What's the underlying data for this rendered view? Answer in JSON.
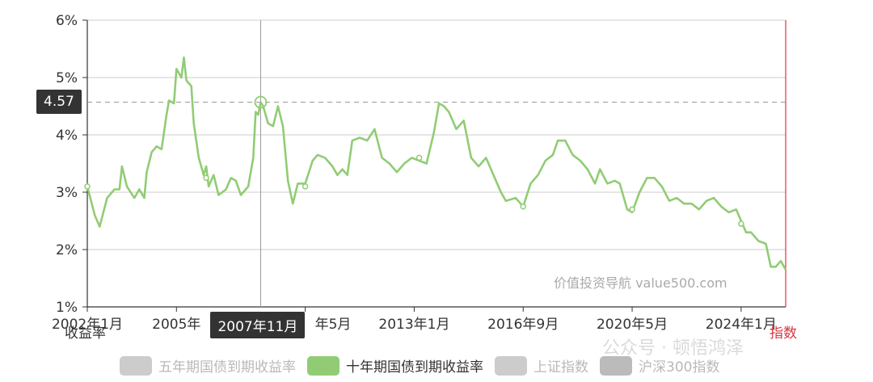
{
  "chart_data": {
    "type": "line",
    "x_tick_labels": [
      "2002年1月",
      "2005年",
      "年5月",
      "2013年1月",
      "2016年9月",
      "2020年5月",
      "2024年1月"
    ],
    "y_tick_labels": [
      "1%",
      "2%",
      "3%",
      "4%",
      "5%",
      "6%"
    ],
    "ylim": [
      1,
      6
    ],
    "xlim": [
      "2002-01",
      "2025-07"
    ],
    "ylabel_left": "收益率",
    "ylabel_right": "指数",
    "watermark": "价值投资导航 value500.com",
    "grid": true,
    "legend_position": "bottom",
    "legend": [
      {
        "label": "五年期国债到期收益率",
        "color": "#cccccc",
        "active": false
      },
      {
        "label": "十年期国债到期收益率",
        "color": "#91cc75",
        "active": true
      },
      {
        "label": "上证指数",
        "color": "#cccccc",
        "active": false
      },
      {
        "label": "沪深300指数",
        "color": "#bbbbbb",
        "active": false
      }
    ],
    "tooltip": {
      "x_label": "2007年11月",
      "y_label": "4.57",
      "x": "2007-11",
      "y": 4.57
    },
    "series": [
      {
        "name": "十年期国债到期收益率",
        "color": "#91cc75",
        "points": [
          [
            "2002-01",
            3.1
          ],
          [
            "2002-04",
            2.6
          ],
          [
            "2002-06",
            2.4
          ],
          [
            "2002-09",
            2.9
          ],
          [
            "2002-12",
            3.05
          ],
          [
            "2003-02",
            3.05
          ],
          [
            "2003-03",
            3.45
          ],
          [
            "2003-05",
            3.1
          ],
          [
            "2003-08",
            2.9
          ],
          [
            "2003-10",
            3.05
          ],
          [
            "2003-12",
            2.9
          ],
          [
            "2004-01",
            3.35
          ],
          [
            "2004-03",
            3.7
          ],
          [
            "2004-05",
            3.8
          ],
          [
            "2004-07",
            3.75
          ],
          [
            "2004-09",
            4.35
          ],
          [
            "2004-10",
            4.6
          ],
          [
            "2004-12",
            4.55
          ],
          [
            "2005-01",
            5.15
          ],
          [
            "2005-03",
            5.0
          ],
          [
            "2005-04",
            5.35
          ],
          [
            "2005-05",
            4.95
          ],
          [
            "2005-07",
            4.85
          ],
          [
            "2005-08",
            4.2
          ],
          [
            "2005-10",
            3.6
          ],
          [
            "2005-12",
            3.3
          ],
          [
            "2006-01",
            3.45
          ],
          [
            "2006-02",
            3.1
          ],
          [
            "2006-04",
            3.3
          ],
          [
            "2006-06",
            2.95
          ],
          [
            "2006-09",
            3.05
          ],
          [
            "2006-11",
            3.25
          ],
          [
            "2007-01",
            3.2
          ],
          [
            "2007-03",
            2.95
          ],
          [
            "2007-06",
            3.1
          ],
          [
            "2007-08",
            3.6
          ],
          [
            "2007-09",
            4.4
          ],
          [
            "2007-10",
            4.35
          ],
          [
            "2007-11",
            4.57
          ],
          [
            "2007-12",
            4.5
          ],
          [
            "2008-02",
            4.2
          ],
          [
            "2008-04",
            4.15
          ],
          [
            "2008-06",
            4.5
          ],
          [
            "2008-08",
            4.15
          ],
          [
            "2008-10",
            3.2
          ],
          [
            "2008-12",
            2.8
          ],
          [
            "2009-02",
            3.15
          ],
          [
            "2009-05",
            3.15
          ],
          [
            "2009-08",
            3.55
          ],
          [
            "2009-10",
            3.65
          ],
          [
            "2010-01",
            3.6
          ],
          [
            "2010-04",
            3.45
          ],
          [
            "2010-06",
            3.3
          ],
          [
            "2010-08",
            3.4
          ],
          [
            "2010-10",
            3.3
          ],
          [
            "2010-12",
            3.9
          ],
          [
            "2011-03",
            3.95
          ],
          [
            "2011-06",
            3.9
          ],
          [
            "2011-09",
            4.1
          ],
          [
            "2011-12",
            3.6
          ],
          [
            "2012-03",
            3.5
          ],
          [
            "2012-06",
            3.35
          ],
          [
            "2012-09",
            3.5
          ],
          [
            "2012-12",
            3.6
          ],
          [
            "2013-03",
            3.55
          ],
          [
            "2013-06",
            3.5
          ],
          [
            "2013-09",
            4.05
          ],
          [
            "2013-11",
            4.55
          ],
          [
            "2014-01",
            4.5
          ],
          [
            "2014-03",
            4.4
          ],
          [
            "2014-06",
            4.1
          ],
          [
            "2014-09",
            4.25
          ],
          [
            "2014-12",
            3.6
          ],
          [
            "2015-03",
            3.45
          ],
          [
            "2015-06",
            3.6
          ],
          [
            "2015-09",
            3.3
          ],
          [
            "2015-12",
            3.0
          ],
          [
            "2016-02",
            2.85
          ],
          [
            "2016-06",
            2.9
          ],
          [
            "2016-09",
            2.75
          ],
          [
            "2016-12",
            3.15
          ],
          [
            "2017-03",
            3.3
          ],
          [
            "2017-06",
            3.55
          ],
          [
            "2017-09",
            3.65
          ],
          [
            "2017-11",
            3.9
          ],
          [
            "2018-02",
            3.9
          ],
          [
            "2018-05",
            3.65
          ],
          [
            "2018-08",
            3.55
          ],
          [
            "2018-11",
            3.4
          ],
          [
            "2019-02",
            3.15
          ],
          [
            "2019-04",
            3.4
          ],
          [
            "2019-07",
            3.15
          ],
          [
            "2019-10",
            3.2
          ],
          [
            "2019-12",
            3.15
          ],
          [
            "2020-03",
            2.7
          ],
          [
            "2020-05",
            2.65
          ],
          [
            "2020-08",
            3.0
          ],
          [
            "2020-11",
            3.25
          ],
          [
            "2021-02",
            3.25
          ],
          [
            "2021-05",
            3.1
          ],
          [
            "2021-08",
            2.85
          ],
          [
            "2021-11",
            2.9
          ],
          [
            "2022-02",
            2.8
          ],
          [
            "2022-05",
            2.8
          ],
          [
            "2022-08",
            2.7
          ],
          [
            "2022-11",
            2.85
          ],
          [
            "2023-02",
            2.9
          ],
          [
            "2023-05",
            2.75
          ],
          [
            "2023-08",
            2.65
          ],
          [
            "2023-11",
            2.7
          ],
          [
            "2024-01",
            2.5
          ],
          [
            "2024-03",
            2.3
          ],
          [
            "2024-05",
            2.3
          ],
          [
            "2024-08",
            2.15
          ],
          [
            "2024-11",
            2.1
          ],
          [
            "2025-01",
            1.7
          ],
          [
            "2025-03",
            1.7
          ],
          [
            "2025-05",
            1.8
          ],
          [
            "2025-07",
            1.65
          ]
        ],
        "markers": [
          [
            "2002-01",
            3.1
          ],
          [
            "2006-01",
            3.25
          ],
          [
            "2009-05",
            3.1
          ],
          [
            "2013-03",
            3.6
          ],
          [
            "2016-09",
            2.75
          ],
          [
            "2020-05",
            2.7
          ],
          [
            "2024-01",
            2.45
          ]
        ]
      }
    ]
  },
  "brand": "公众号 · 顿悟鸿泽"
}
